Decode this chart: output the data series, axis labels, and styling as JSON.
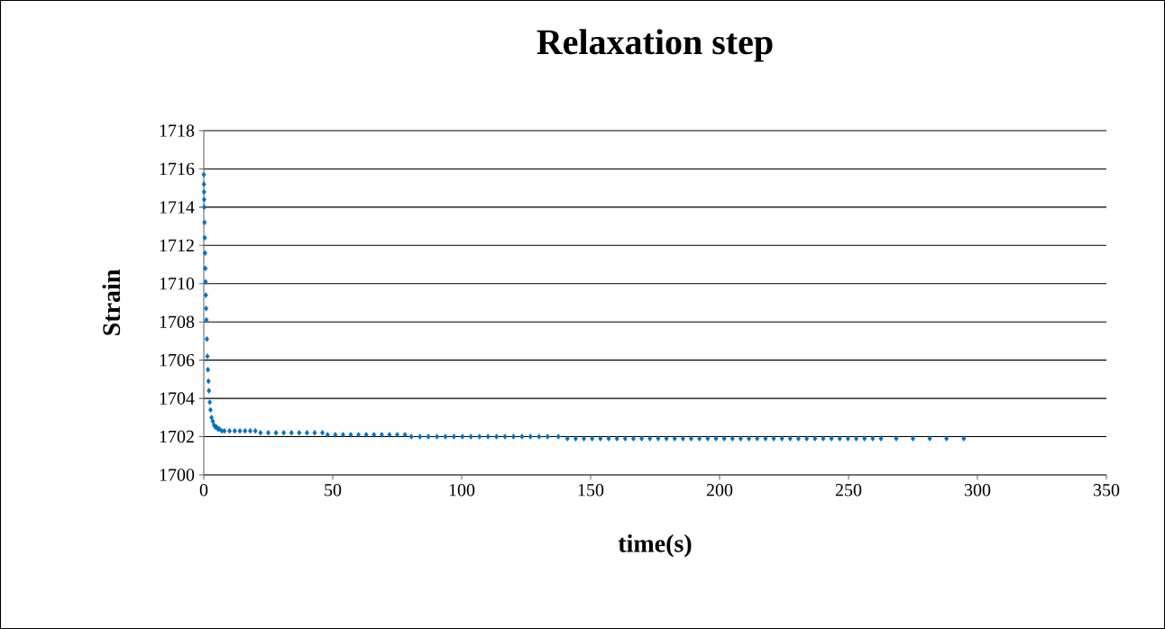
{
  "chart_data": {
    "type": "scatter",
    "title": "Relaxation step",
    "xlabel": "time(s)",
    "ylabel": "Strain",
    "x": [
      0,
      0.05,
      0.1,
      0.15,
      0.2,
      0.3,
      0.4,
      0.5,
      0.6,
      0.7,
      0.8,
      0.9,
      1.0,
      1.2,
      1.4,
      1.6,
      1.8,
      2.0,
      2.3,
      2.6,
      3.0,
      3.5,
      4.0,
      4.5,
      5,
      5.5,
      6,
      7,
      8,
      10,
      12,
      14,
      16,
      18,
      20,
      22,
      25,
      28,
      31,
      34,
      37,
      40,
      43,
      46,
      48,
      51,
      54,
      57,
      60,
      63,
      66,
      69,
      72,
      75,
      78,
      80.5,
      83.8,
      87.1,
      90.4,
      93.7,
      97,
      100.3,
      103.6,
      106.9,
      110.2,
      113.5,
      116.8,
      120.1,
      123.4,
      126.7,
      130,
      133.3,
      137.5,
      141,
      144.2,
      147.4,
      150.6,
      153.8,
      157,
      160.2,
      163.4,
      166.6,
      169.8,
      173,
      176.2,
      179.4,
      182.6,
      185.8,
      189,
      192.2,
      195.4,
      198.6,
      201.8,
      205,
      208.2,
      211.4,
      214.6,
      217.8,
      221,
      224.2,
      227.4,
      230.6,
      233.8,
      237,
      240.2,
      243.4,
      246.6,
      249.8,
      253,
      256.2,
      259.4,
      262.6,
      268.5,
      275,
      281.5,
      288,
      294.7
    ],
    "values": [
      1715.7,
      1715.2,
      1714.8,
      1714.4,
      1714.0,
      1713.2,
      1712.4,
      1711.6,
      1710.8,
      1710.1,
      1709.4,
      1708.7,
      1708.1,
      1707.1,
      1706.2,
      1705.5,
      1704.9,
      1704.4,
      1703.8,
      1703.4,
      1703.0,
      1702.8,
      1702.6,
      1702.5,
      1702.5,
      1702.4,
      1702.4,
      1702.3,
      1702.3,
      1702.3,
      1702.3,
      1702.3,
      1702.3,
      1702.3,
      1702.3,
      1702.2,
      1702.2,
      1702.2,
      1702.2,
      1702.2,
      1702.2,
      1702.2,
      1702.2,
      1702.2,
      1702.1,
      1702.1,
      1702.1,
      1702.1,
      1702.1,
      1702.1,
      1702.1,
      1702.1,
      1702.1,
      1702.1,
      1702.1,
      1702.0,
      1702.0,
      1702.0,
      1702.0,
      1702.0,
      1702.0,
      1702.0,
      1702.0,
      1702.0,
      1702.0,
      1702.0,
      1702.0,
      1702.0,
      1702.0,
      1702.0,
      1702.0,
      1702.0,
      1702.0,
      1701.9,
      1701.9,
      1701.9,
      1701.9,
      1701.9,
      1701.9,
      1701.9,
      1701.9,
      1701.9,
      1701.9,
      1701.9,
      1701.9,
      1701.9,
      1701.9,
      1701.9,
      1701.9,
      1701.9,
      1701.9,
      1701.9,
      1701.9,
      1701.9,
      1701.9,
      1701.9,
      1701.9,
      1701.9,
      1701.9,
      1701.9,
      1701.9,
      1701.9,
      1701.9,
      1701.9,
      1701.9,
      1701.9,
      1701.9,
      1701.9,
      1701.9,
      1701.9,
      1701.9,
      1701.9,
      1701.9,
      1701.9,
      1701.9,
      1701.9,
      1701.9
    ],
    "color": "#0070c0",
    "marker": "diamond",
    "grid": "y",
    "xlim": [
      0,
      350
    ],
    "xticks": [
      0,
      50,
      100,
      150,
      200,
      250,
      300,
      350
    ],
    "ylim": [
      1700,
      1718
    ],
    "yticks": [
      1700,
      1702,
      1704,
      1706,
      1708,
      1710,
      1712,
      1714,
      1716,
      1718
    ]
  }
}
